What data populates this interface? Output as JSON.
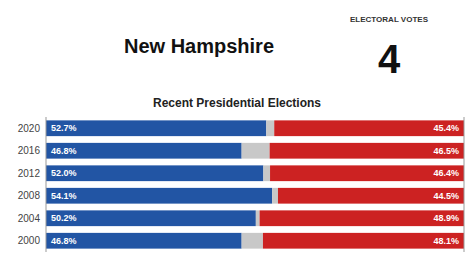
{
  "chart_data": {
    "type": "bar",
    "title": "Recent Presidential Elections",
    "annotations": [
      "New Hampshire",
      "ELECTORAL VOTES",
      "4"
    ],
    "orientation": "horizontal",
    "stacked": true,
    "data_labels": true,
    "tick_labels": "y",
    "grid": false,
    "categories": [
      "2020",
      "2016",
      "2012",
      "2008",
      "2004",
      "2000"
    ],
    "xlim": [
      0,
      100
    ],
    "series": [
      {
        "color": "#2255a4",
        "values": [
          52.7,
          46.8,
          52.0,
          54.1,
          50.2,
          46.8
        ],
        "value_labels": [
          "52.7%",
          "46.8%",
          "52.0%",
          "54.1%",
          "50.2%",
          "46.8%"
        ]
      },
      {
        "color": "#c8c8c8",
        "values": [
          1.9,
          6.7,
          1.6,
          1.4,
          0.9,
          5.1
        ]
      },
      {
        "color": "#cc2222",
        "values": [
          45.4,
          46.5,
          46.4,
          44.5,
          48.9,
          48.1
        ],
        "value_labels": [
          "45.4%",
          "46.5%",
          "46.4%",
          "44.5%",
          "48.9%",
          "48.1%"
        ]
      }
    ]
  }
}
